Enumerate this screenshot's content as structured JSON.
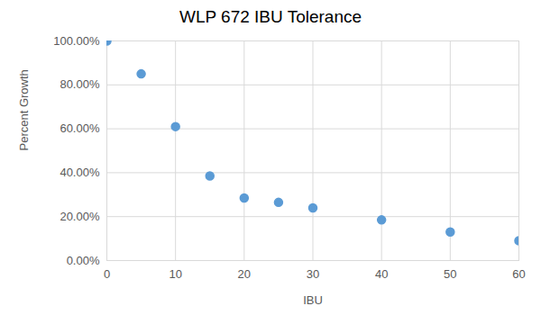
{
  "chart_data": {
    "type": "scatter",
    "title": "WLP 672 IBU Tolerance",
    "x_label": "IBU",
    "y_label": "Percent Growth",
    "x": [
      0,
      5,
      10,
      15,
      20,
      25,
      30,
      40,
      50,
      60
    ],
    "values": [
      100,
      85,
      61,
      38.5,
      28.5,
      26.5,
      24,
      18.5,
      13,
      9
    ],
    "color": "#5b9bd5",
    "marker": "circle",
    "xlim": [
      0,
      60
    ],
    "ylim": [
      0,
      100
    ],
    "xticks": [
      0,
      10,
      20,
      30,
      40,
      50,
      60
    ],
    "yticks": [
      {
        "value": 0,
        "label": "0.00%"
      },
      {
        "value": 20,
        "label": "20.00%"
      },
      {
        "value": 40,
        "label": "40.00%"
      },
      {
        "value": 60,
        "label": "60.00%"
      },
      {
        "value": 80,
        "label": "80.00%"
      },
      {
        "value": 100,
        "label": "100.00%"
      }
    ],
    "grid": true
  }
}
